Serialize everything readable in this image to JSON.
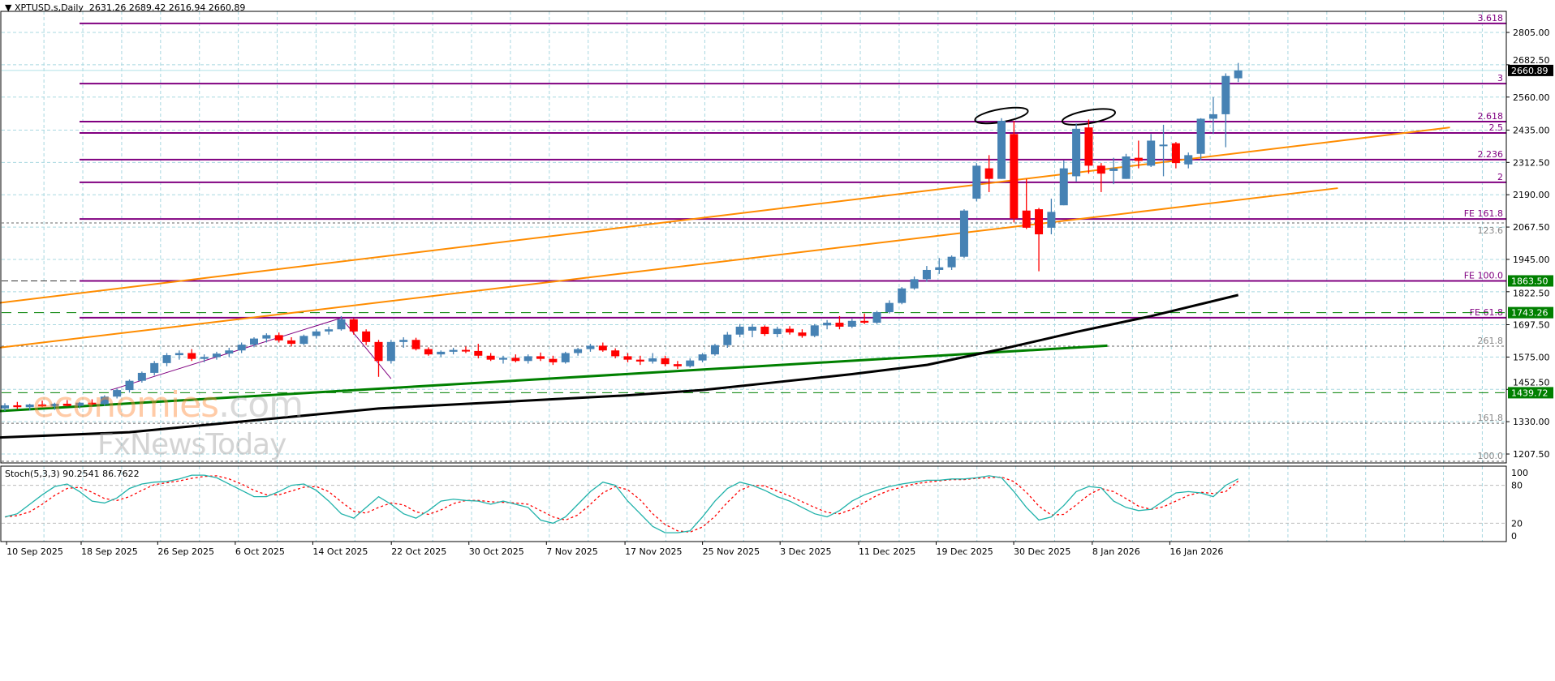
{
  "header": {
    "symbol": "XPTUSD.s,Daily",
    "ohlc": "2631.26 2689.42 2616.94 2660.89"
  },
  "watermark": {
    "line1_a": "economies",
    "line1_b": ".com",
    "line2": "FxNewsToday"
  },
  "colors": {
    "bull": "#4682b4",
    "bear": "#ff0000",
    "fib": "#800080",
    "channel": "#ff8c00",
    "trend": "#008000",
    "ma": "#000000",
    "grid": "#a8d8e0",
    "stoch_k": "#20b2aa",
    "stoch_d": "#ff0000",
    "level_green": "#008000",
    "current_price_bg": "#000000"
  },
  "chart_data": [
    {
      "type": "candlestick",
      "title": "XPTUSD.s,Daily",
      "ylim": [
        1085,
        2860
      ],
      "y_ticks": [
        "2805.00",
        "2682.50",
        "2560.00",
        "2435.00",
        "2312.50",
        "2190.00",
        "2067.50",
        "1945.00",
        "1822.50",
        "1697.50",
        "1575.00",
        "1452.50",
        "1330.00",
        "1207.50"
      ],
      "x_ticks": [
        "10 Sep 2025",
        "18 Sep 2025",
        "26 Sep 2025",
        "6 Oct 2025",
        "14 Oct 2025",
        "22 Oct 2025",
        "30 Oct 2025",
        "7 Nov 2025",
        "17 Nov 2025",
        "25 Nov 2025",
        "3 Dec 2025",
        "11 Dec 2025",
        "19 Dec 2025",
        "30 Dec 2025",
        "8 Jan 2026",
        "16 Jan 2026"
      ],
      "grid": true,
      "current_price": "2660.89",
      "candles": [
        [
          1380,
          1400,
          1370,
          1392
        ],
        [
          1392,
          1405,
          1378,
          1385
        ],
        [
          1385,
          1398,
          1372,
          1395
        ],
        [
          1395,
          1410,
          1385,
          1388
        ],
        [
          1388,
          1402,
          1375,
          1398
        ],
        [
          1398,
          1412,
          1388,
          1390
        ],
        [
          1390,
          1405,
          1380,
          1402
        ],
        [
          1402,
          1415,
          1392,
          1396
        ],
        [
          1396,
          1430,
          1390,
          1425
        ],
        [
          1425,
          1455,
          1418,
          1450
        ],
        [
          1450,
          1490,
          1440,
          1485
        ],
        [
          1485,
          1520,
          1478,
          1515
        ],
        [
          1515,
          1560,
          1505,
          1552
        ],
        [
          1552,
          1590,
          1540,
          1582
        ],
        [
          1582,
          1600,
          1565,
          1590
        ],
        [
          1590,
          1605,
          1560,
          1568
        ],
        [
          1568,
          1585,
          1555,
          1575
        ],
        [
          1575,
          1595,
          1565,
          1588
        ],
        [
          1588,
          1610,
          1575,
          1600
        ],
        [
          1600,
          1630,
          1590,
          1622
        ],
        [
          1622,
          1650,
          1612,
          1645
        ],
        [
          1645,
          1665,
          1630,
          1658
        ],
        [
          1658,
          1668,
          1630,
          1638
        ],
        [
          1638,
          1650,
          1615,
          1625
        ],
        [
          1625,
          1660,
          1620,
          1655
        ],
        [
          1655,
          1680,
          1645,
          1672
        ],
        [
          1672,
          1690,
          1660,
          1680
        ],
        [
          1680,
          1730,
          1675,
          1718
        ],
        [
          1718,
          1722,
          1660,
          1672
        ],
        [
          1672,
          1680,
          1620,
          1632
        ],
        [
          1632,
          1640,
          1500,
          1560
        ],
        [
          1560,
          1640,
          1550,
          1632
        ],
        [
          1632,
          1650,
          1610,
          1640
        ],
        [
          1640,
          1648,
          1600,
          1605
        ],
        [
          1605,
          1612,
          1580,
          1585
        ],
        [
          1585,
          1600,
          1575,
          1595
        ],
        [
          1595,
          1610,
          1585,
          1602
        ],
        [
          1602,
          1615,
          1590,
          1598
        ],
        [
          1598,
          1625,
          1570,
          1580
        ],
        [
          1580,
          1590,
          1560,
          1565
        ],
        [
          1565,
          1580,
          1550,
          1572
        ],
        [
          1572,
          1585,
          1555,
          1560
        ],
        [
          1560,
          1585,
          1550,
          1578
        ],
        [
          1578,
          1592,
          1560,
          1568
        ],
        [
          1568,
          1580,
          1545,
          1555
        ],
        [
          1555,
          1595,
          1550,
          1590
        ],
        [
          1590,
          1610,
          1580,
          1605
        ],
        [
          1605,
          1625,
          1595,
          1618
        ],
        [
          1618,
          1630,
          1595,
          1600
        ],
        [
          1600,
          1608,
          1570,
          1578
        ],
        [
          1578,
          1590,
          1555,
          1565
        ],
        [
          1565,
          1580,
          1545,
          1558
        ],
        [
          1558,
          1590,
          1550,
          1570
        ],
        [
          1570,
          1580,
          1540,
          1548
        ],
        [
          1548,
          1560,
          1530,
          1540
        ],
        [
          1540,
          1570,
          1535,
          1562
        ],
        [
          1562,
          1590,
          1555,
          1585
        ],
        [
          1585,
          1625,
          1580,
          1620
        ],
        [
          1620,
          1670,
          1610,
          1660
        ],
        [
          1660,
          1700,
          1650,
          1690
        ],
        [
          1675,
          1700,
          1650,
          1690
        ],
        [
          1690,
          1695,
          1655,
          1662
        ],
        [
          1662,
          1690,
          1650,
          1682
        ],
        [
          1682,
          1692,
          1660,
          1668
        ],
        [
          1668,
          1680,
          1648,
          1655
        ],
        [
          1655,
          1700,
          1650,
          1695
        ],
        [
          1695,
          1715,
          1680,
          1705
        ],
        [
          1705,
          1730,
          1680,
          1690
        ],
        [
          1690,
          1720,
          1685,
          1712
        ],
        [
          1712,
          1740,
          1700,
          1705
        ],
        [
          1705,
          1750,
          1700,
          1745
        ],
        [
          1745,
          1790,
          1740,
          1780
        ],
        [
          1780,
          1840,
          1775,
          1835
        ],
        [
          1835,
          1880,
          1830,
          1870
        ],
        [
          1870,
          1920,
          1860,
          1905
        ],
        [
          1905,
          1950,
          1890,
          1915
        ],
        [
          1915,
          1960,
          1905,
          1955
        ],
        [
          1955,
          2135,
          1950,
          2130
        ],
        [
          2175,
          2310,
          2165,
          2300
        ],
        [
          2290,
          2340,
          2200,
          2250
        ],
        [
          2250,
          2480,
          2250,
          2470
        ],
        [
          2420,
          2470,
          2085,
          2100
        ],
        [
          2130,
          2250,
          2060,
          2065
        ],
        [
          2135,
          2140,
          1900,
          2040
        ],
        [
          2065,
          2175,
          2040,
          2125
        ],
        [
          2150,
          2320,
          2150,
          2290
        ],
        [
          2260,
          2460,
          2240,
          2440
        ],
        [
          2445,
          2475,
          2270,
          2300
        ],
        [
          2300,
          2310,
          2200,
          2270
        ],
        [
          2280,
          2330,
          2230,
          2290
        ],
        [
          2250,
          2345,
          2250,
          2335
        ],
        [
          2330,
          2395,
          2290,
          2318
        ],
        [
          2300,
          2420,
          2295,
          2395
        ],
        [
          2375,
          2455,
          2260,
          2380
        ],
        [
          2385,
          2390,
          2290,
          2310
        ],
        [
          2305,
          2350,
          2290,
          2340
        ],
        [
          2345,
          2480,
          2320,
          2478
        ],
        [
          2478,
          2560,
          2420,
          2495
        ],
        [
          2495,
          2650,
          2370,
          2640
        ],
        [
          2631.26,
          2689.42,
          2616.94,
          2660.89
        ]
      ],
      "fib_levels": [
        {
          "label": "3.618",
          "price": 2839
        },
        {
          "label": "3",
          "price": 2611
        },
        {
          "label": "2.618",
          "price": 2467
        },
        {
          "label": "2.5",
          "price": 2424
        },
        {
          "label": "2.236",
          "price": 2323
        },
        {
          "label": "2",
          "price": 2237
        },
        {
          "label": "FE 161.8",
          "price": 2098
        },
        {
          "label": "FE 100.0",
          "price": 1863.5
        },
        {
          "label": "FE 61.8",
          "price": 1724
        }
      ],
      "dotted_levels": [
        {
          "label": "123.6",
          "price": 2083
        },
        {
          "label": "261.8",
          "price": 1616
        },
        {
          "label": "161.8",
          "price": 1324
        },
        {
          "label": "100.0",
          "price": 1090
        }
      ],
      "marked_levels": [
        {
          "label": "1863.50",
          "price": 1863.5
        },
        {
          "label": "1743.26",
          "price": 1743.26
        },
        {
          "label": "1439.72",
          "price": 1439.72
        }
      ],
      "channel_lines": [
        {
          "from": [
            -0.5,
            1780
          ],
          "to": [
            116,
            2445
          ]
        },
        {
          "from": [
            -0.5,
            1610
          ],
          "to": [
            107,
            2215
          ]
        }
      ],
      "trend_line": {
        "from": [
          -0.5,
          1370
        ],
        "to": [
          88.5,
          1618
        ]
      },
      "zigzag": [
        [
          8.5,
          1450
        ],
        [
          27,
          1723
        ],
        [
          31,
          1493
        ]
      ],
      "moving_average": [
        [
          -0.5,
          1270
        ],
        [
          10,
          1290
        ],
        [
          20,
          1335
        ],
        [
          30,
          1380
        ],
        [
          40,
          1405
        ],
        [
          50,
          1430
        ],
        [
          56,
          1450
        ],
        [
          62,
          1480
        ],
        [
          68,
          1510
        ],
        [
          74,
          1545
        ],
        [
          80,
          1605
        ],
        [
          86,
          1670
        ],
        [
          92,
          1730
        ],
        [
          99,
          1810
        ]
      ],
      "ellipses": [
        [
          80,
          2490
        ],
        [
          87,
          2485
        ]
      ]
    },
    {
      "type": "line",
      "title": "Stoch(5,3,3) 90.2541 86.7622",
      "ylim": [
        0,
        100
      ],
      "y_ticks": [
        "100",
        "80",
        "20",
        "0"
      ],
      "levels": [
        80,
        20
      ],
      "series": [
        {
          "values": [
            30,
            35,
            50,
            65,
            78,
            82,
            70,
            55,
            52,
            60,
            75,
            82,
            85,
            86,
            90,
            96,
            96,
            92,
            82,
            72,
            62,
            62,
            70,
            80,
            82,
            72,
            55,
            35,
            28,
            45,
            62,
            50,
            35,
            28,
            40,
            55,
            58,
            56,
            55,
            50,
            55,
            50,
            45,
            25,
            20,
            30,
            50,
            70,
            85,
            80,
            55,
            35,
            15,
            5,
            5,
            8,
            30,
            55,
            75,
            85,
            80,
            72,
            62,
            55,
            45,
            35,
            30,
            40,
            55,
            65,
            72,
            78,
            82,
            85,
            88,
            88,
            90,
            90,
            92,
            95,
            92,
            70,
            45,
            25,
            30,
            48,
            70,
            78,
            76,
            55,
            45,
            40,
            42,
            55,
            68,
            70,
            68,
            62,
            80,
            90.2541
          ]
        },
        {
          "values": [
            30,
            32,
            38,
            50,
            64,
            75,
            77,
            69,
            59,
            56,
            62,
            72,
            81,
            84,
            87,
            91,
            94,
            95,
            90,
            82,
            72,
            65,
            65,
            71,
            77,
            78,
            70,
            54,
            39,
            36,
            45,
            52,
            49,
            38,
            34,
            41,
            51,
            56,
            56,
            54,
            53,
            52,
            50,
            40,
            30,
            25,
            33,
            50,
            68,
            78,
            73,
            57,
            35,
            18,
            8,
            6,
            14,
            31,
            53,
            72,
            80,
            79,
            71,
            63,
            54,
            45,
            37,
            35,
            42,
            53,
            64,
            72,
            77,
            82,
            85,
            87,
            89,
            89,
            91,
            92,
            93,
            86,
            69,
            47,
            33,
            34,
            49,
            65,
            75,
            70,
            59,
            47,
            42,
            46,
            55,
            64,
            69,
            67,
            70,
            86.7622
          ]
        }
      ]
    }
  ]
}
